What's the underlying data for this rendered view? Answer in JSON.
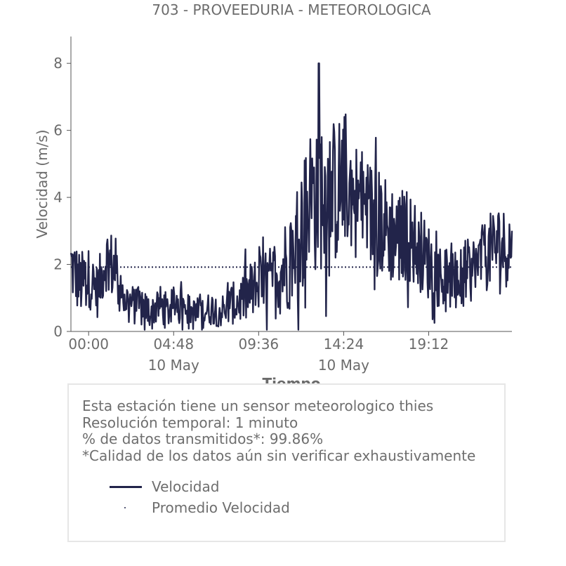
{
  "chart_data": {
    "type": "line",
    "title": "703 - PROVEEDURIA - METEOROLOGICA",
    "xlabel": "Tiempo",
    "ylabel": "Velocidad (m/s)",
    "ylim": [
      0,
      8.8
    ],
    "xlim": [
      -1.0,
      23.9
    ],
    "x_unit": "hours from 10 May 00:00",
    "yticks": [
      0,
      2,
      4,
      6,
      8
    ],
    "xticks": [
      {
        "pos": 0.0,
        "label": "00:00",
        "sublabel": ""
      },
      {
        "pos": 4.8,
        "label": "04:48",
        "sublabel": "10 May"
      },
      {
        "pos": 9.6,
        "label": "09:36",
        "sublabel": ""
      },
      {
        "pos": 14.4,
        "label": "14:24",
        "sublabel": "10 May"
      },
      {
        "pos": 19.2,
        "label": "19:12",
        "sublabel": ""
      }
    ],
    "series": [
      {
        "name": "Velocidad",
        "color": "#22244a",
        "style": "solid",
        "x": [
          -1.0,
          -0.5,
          0.0,
          0.5,
          1.0,
          1.5,
          2.0,
          2.5,
          3.0,
          3.5,
          4.0,
          4.5,
          5.0,
          5.5,
          6.0,
          6.5,
          7.0,
          7.5,
          8.0,
          8.5,
          9.0,
          9.5,
          10.0,
          10.5,
          11.0,
          11.5,
          12.0,
          12.5,
          13.0,
          13.5,
          14.0,
          14.5,
          15.0,
          15.5,
          16.0,
          16.5,
          17.0,
          17.5,
          18.0,
          18.5,
          19.0,
          19.5,
          20.0,
          20.5,
          21.0,
          21.5,
          22.0,
          22.5,
          23.0,
          23.5,
          23.9
        ],
        "y": [
          2.0,
          1.4,
          1.6,
          1.2,
          2.2,
          1.8,
          1.0,
          0.8,
          0.7,
          0.6,
          0.8,
          0.6,
          0.9,
          0.7,
          0.5,
          0.6,
          0.7,
          0.6,
          0.8,
          0.9,
          1.1,
          1.3,
          1.4,
          1.6,
          1.9,
          2.4,
          3.0,
          3.8,
          4.4,
          4.0,
          4.2,
          4.6,
          4.0,
          3.8,
          3.4,
          3.2,
          3.0,
          2.8,
          2.9,
          2.6,
          2.2,
          1.9,
          1.6,
          1.3,
          1.5,
          1.8,
          2.0,
          2.3,
          2.6,
          2.5,
          2.6
        ],
        "amplitude": [
          1.1,
          1.0,
          0.9,
          0.8,
          1.0,
          1.1,
          0.7,
          0.6,
          0.6,
          0.5,
          0.6,
          0.5,
          0.6,
          0.5,
          0.5,
          0.5,
          0.5,
          0.5,
          0.6,
          0.7,
          0.9,
          1.0,
          1.0,
          1.2,
          1.4,
          1.7,
          2.0,
          2.4,
          2.6,
          2.3,
          2.2,
          2.0,
          1.8,
          1.7,
          1.7,
          1.6,
          1.6,
          1.5,
          1.4,
          1.3,
          1.2,
          1.1,
          1.0,
          1.0,
          1.0,
          1.0,
          1.0,
          1.1,
          1.2,
          1.2,
          1.2
        ],
        "peak": {
          "x": 13.0,
          "y": 8.0
        }
      },
      {
        "name": "Promedio Velocidad",
        "color": "#22244a",
        "style": "dotted",
        "x": [
          -1.0,
          23.9
        ],
        "y": [
          1.92,
          1.92
        ]
      }
    ]
  },
  "info": {
    "lines": [
      "Esta estación tiene un sensor meteorologico thies",
      "Resolución temporal: 1 minuto",
      "% de datos transmitidos*: 99.86%",
      "*Calidad de los datos aún sin verificar exhaustivamente"
    ]
  },
  "legend": [
    {
      "label": "Velocidad",
      "kind": "line"
    },
    {
      "label": "Promedio Velocidad",
      "kind": "dot"
    }
  ]
}
